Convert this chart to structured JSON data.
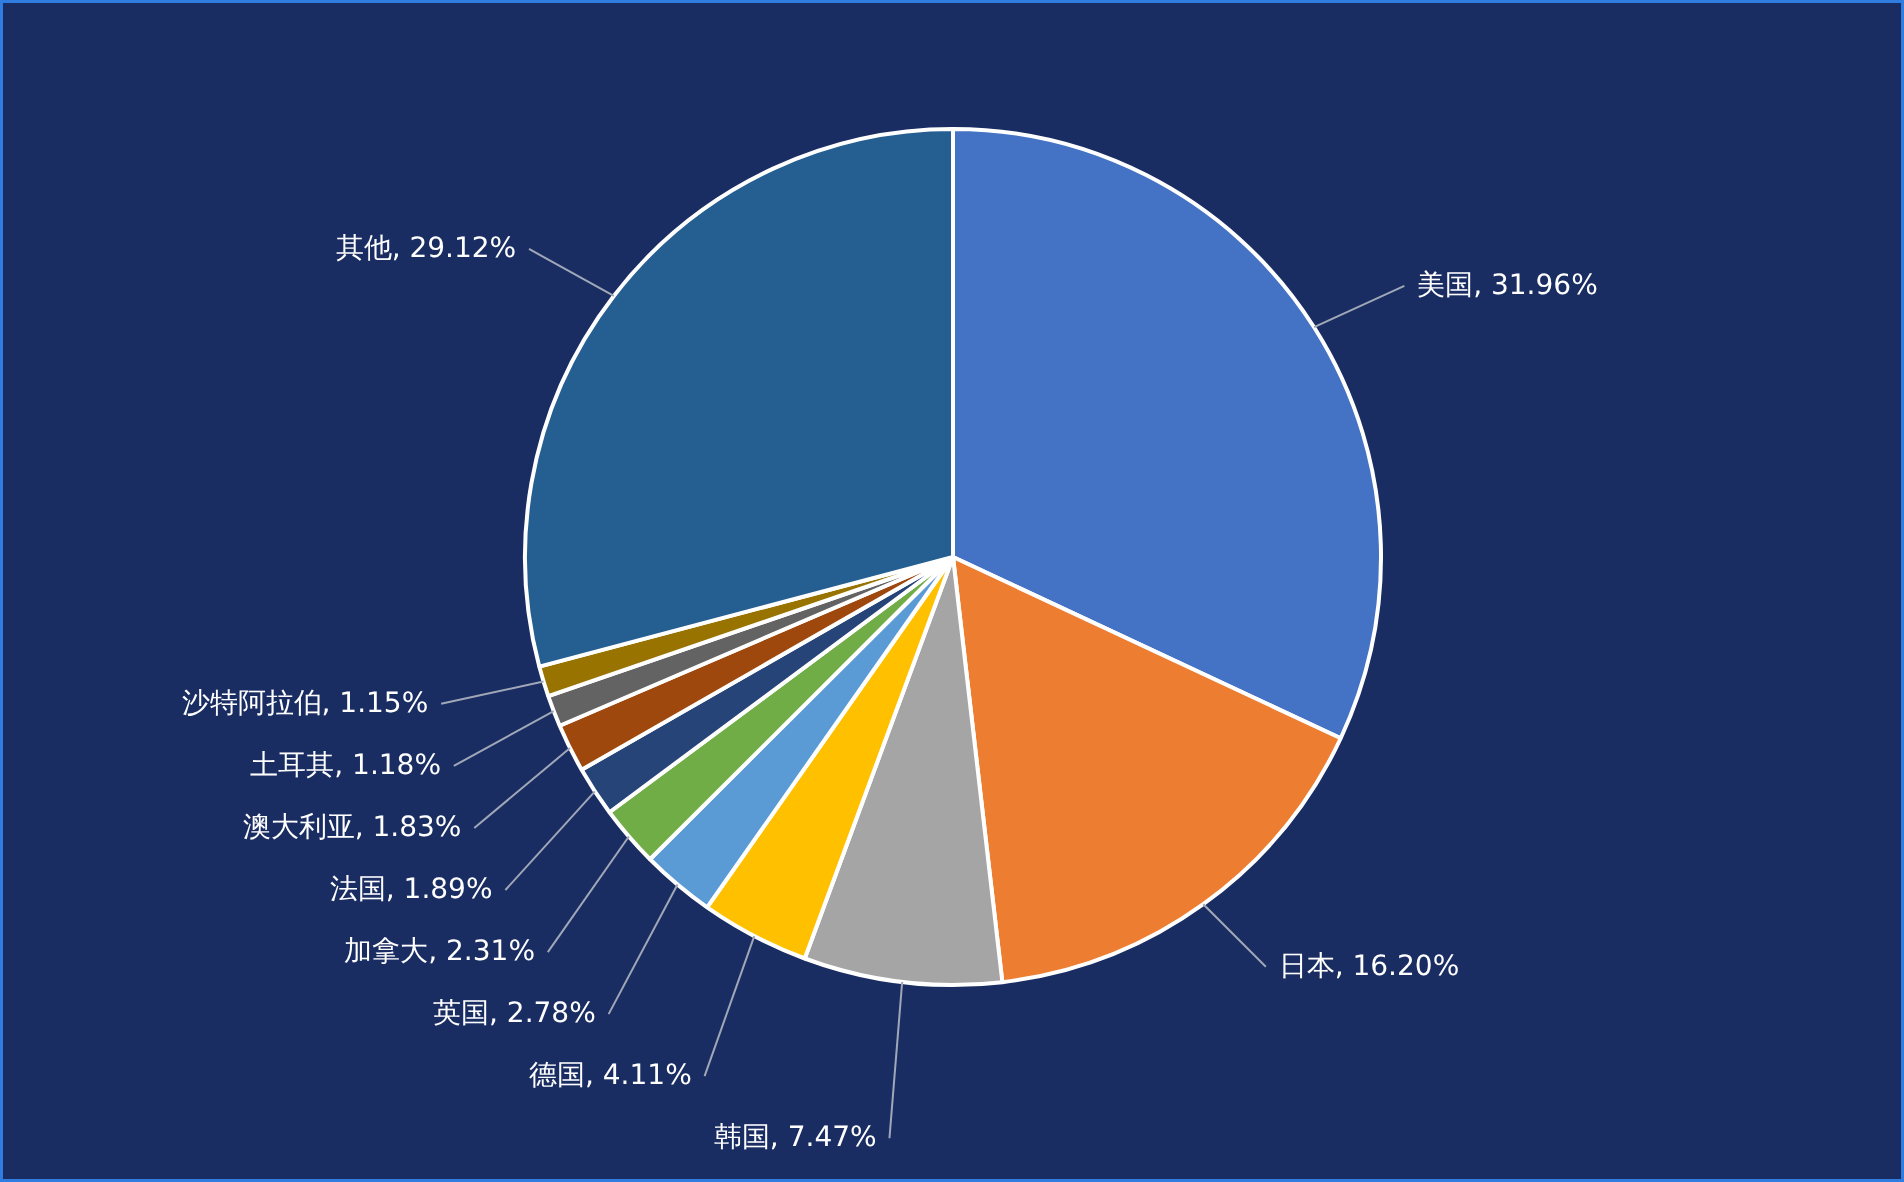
{
  "chart_data": {
    "type": "pie",
    "categories": [
      "美国",
      "日本",
      "韩国",
      "德国",
      "英国",
      "加拿大",
      "法国",
      "澳大利亚",
      "土耳其",
      "沙特阿拉伯",
      "其他"
    ],
    "values": [
      31.96,
      16.2,
      7.47,
      4.11,
      2.78,
      2.31,
      1.89,
      1.83,
      1.18,
      1.15,
      29.12
    ],
    "value_labels": [
      "31.96%",
      "16.20%",
      "7.47%",
      "4.11%",
      "2.78%",
      "2.31%",
      "1.89%",
      "1.83%",
      "1.18%",
      "1.15%",
      "29.12%"
    ],
    "colors": [
      "#4472c4",
      "#ed7d31",
      "#a5a5a5",
      "#ffc000",
      "#5b9bd5",
      "#70ad47",
      "#264478",
      "#9e480e",
      "#636363",
      "#997300",
      "#255e91"
    ]
  }
}
